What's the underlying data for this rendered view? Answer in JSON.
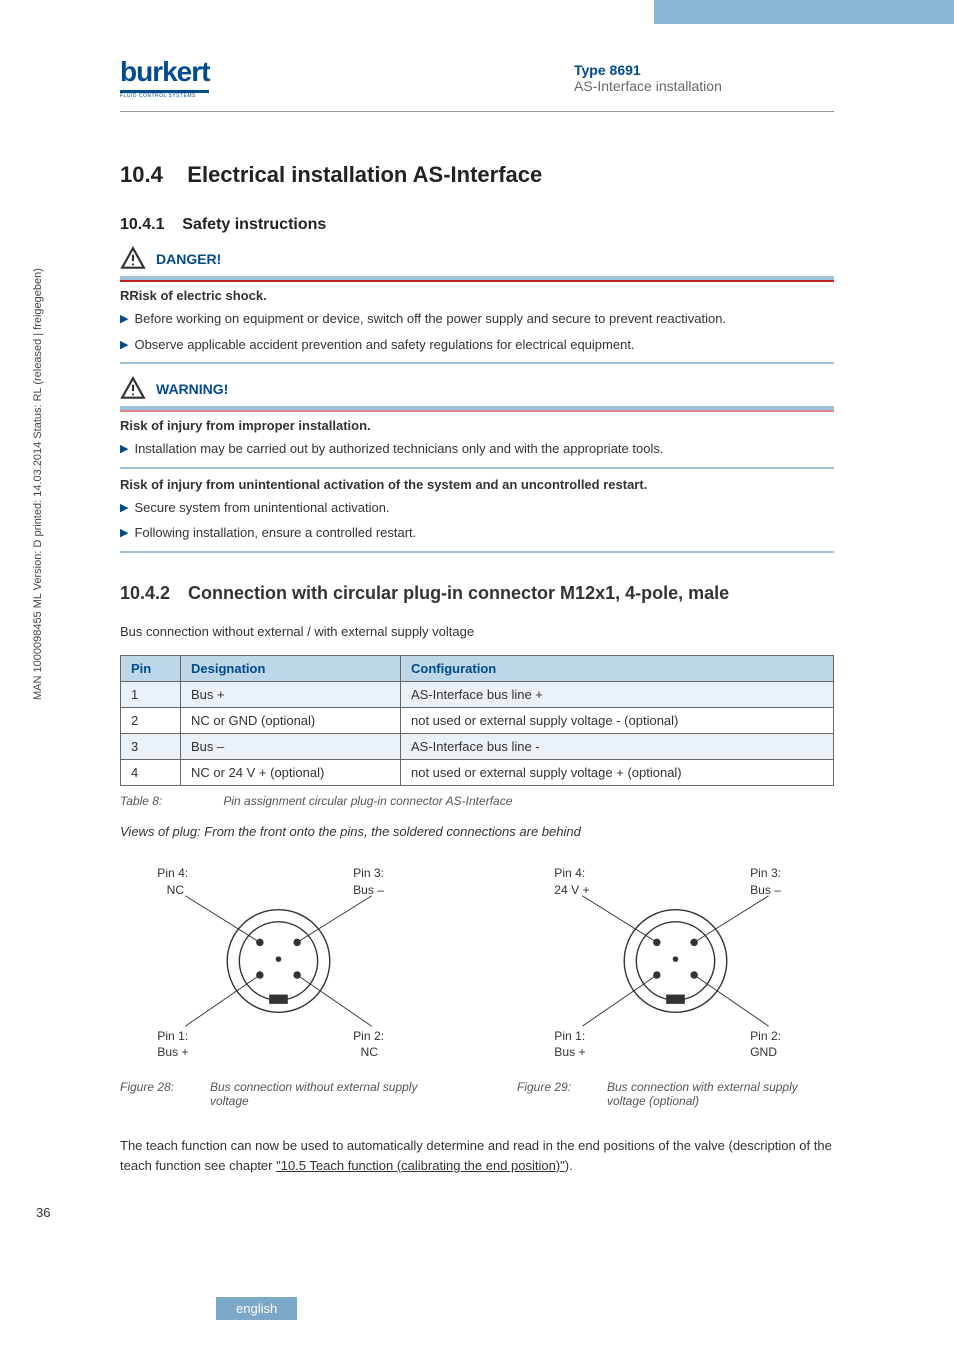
{
  "header": {
    "type": "Type 8691",
    "subtitle": "AS-Interface installation",
    "logo_text": "burkert",
    "logo_sub": "FLUID CONTROL SYSTEMS"
  },
  "sidebar_text": "MAN 1000098455 ML Version: D  printed: 14.03.2014 Status: RL (released | freigegeben)",
  "section": {
    "number": "10.4",
    "title": "Electrical installation AS-Interface"
  },
  "sub1": {
    "number": "10.4.1",
    "title": "Safety instructions"
  },
  "danger": {
    "label": "DANGER!",
    "risk_title": "RRisk of electric shock.",
    "b1": "Before working on equipment or device, switch off the power supply and secure to prevent reactivation.",
    "b2": "Observe applicable accident prevention and safety regulations for electrical equipment."
  },
  "warning": {
    "label": "WARNING!",
    "risk_title": "Risk of injury from improper installation.",
    "b1": "Installation may be carried out by authorized technicians only and with the appropriate tools.",
    "risk_title2": "Risk of injury from unintentional activation of the system and an uncontrolled restart.",
    "b2": "Secure system from unintentional activation.",
    "b3": "Following installation, ensure a controlled restart."
  },
  "sub2": {
    "number": "10.4.2",
    "title": "Connection with circular plug-in connector M12x1, 4-pole, male"
  },
  "bus_text": "Bus connection without external / with external supply voltage",
  "table": {
    "header_bg": "#bdd6e8",
    "row_alt_bg": "#eaf1f7",
    "border_color": "#666666",
    "columns": [
      "Pin",
      "Designation",
      "Configuration"
    ],
    "col_widths": [
      "60px",
      "220px",
      "auto"
    ],
    "rows": [
      [
        "1",
        "Bus +",
        "AS-Interface bus line +"
      ],
      [
        "2",
        "NC or GND (optional)",
        "not used or external supply voltage - (optional)"
      ],
      [
        "3",
        "Bus –",
        "AS-Interface bus line -"
      ],
      [
        "4",
        "NC or 24 V + (optional)",
        "not used or external supply voltage + (optional)"
      ]
    ]
  },
  "table_caption": {
    "label": "Table 8:",
    "text": "Pin assignment circular plug-in connector AS-Interface"
  },
  "views_text": "Views of plug: From the front onto the pins, the soldered connections are behind",
  "plugs": {
    "plug_stroke": "#333333",
    "dot_fill": "#333333",
    "line_color": "#333333",
    "left": {
      "pin4_label": "Pin 4:",
      "pin4_val": "NC",
      "pin3_label": "Pin 3:",
      "pin3_val": "Bus –",
      "pin1_label": "Pin 1:",
      "pin1_val": "Bus +",
      "pin2_label": "Pin 2:",
      "pin2_val": "NC",
      "fig_label": "Figure 28:",
      "fig_text": "Bus connection without external supply voltage"
    },
    "right": {
      "pin4_label": "Pin 4:",
      "pin4_val": "24 V +",
      "pin3_label": "Pin 3:",
      "pin3_val": "Bus –",
      "pin1_label": "Pin 1:",
      "pin1_val": "Bus +",
      "pin2_label": "Pin 2:",
      "pin2_val": "GND",
      "fig_label": "Figure 29:",
      "fig_text": "Bus connection with external supply voltage (optional)"
    }
  },
  "teach_text_pre": "The teach function can now be used to automatically determine and read in the end positions of the valve (description of the teach function see chapter ",
  "teach_link": "\"10.5 Teach function (calibrating the end position)\"",
  "teach_text_post": ").",
  "page_number": "36",
  "language": "english",
  "colors": {
    "accent_blue": "#004b8d",
    "band_blue": "#8ab8d6",
    "light_blue": "#9dc3dc",
    "table_header": "#bdd6e8",
    "row_alt": "#eaf1f7",
    "danger_red": "#c02020"
  }
}
